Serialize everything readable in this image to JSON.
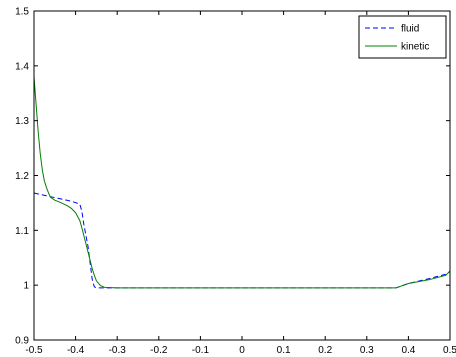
{
  "chart_data": {
    "type": "line",
    "xlim": [
      -0.5,
      0.5
    ],
    "ylim": [
      0.9,
      1.5
    ],
    "xticks": [
      "-0.5",
      "-0.4",
      "-0.3",
      "-0.2",
      "-0.1",
      "0",
      "0.1",
      "0.2",
      "0.3",
      "0.4",
      "0.5"
    ],
    "yticks": [
      "0.9",
      "1",
      "1.1",
      "1.2",
      "1.3",
      "1.4",
      "1.5"
    ],
    "grid": false,
    "legend_position": "top-right",
    "series": [
      {
        "name": "fluid",
        "color": "#0000ff",
        "style": "dashed",
        "x": [
          -0.5,
          -0.47,
          -0.44,
          -0.41,
          -0.39,
          -0.385,
          -0.38,
          -0.37,
          -0.365,
          -0.36,
          -0.355,
          -0.35,
          -0.34,
          -0.3,
          -0.2,
          -0.1,
          0.0,
          0.1,
          0.2,
          0.3,
          0.37,
          0.4,
          0.45,
          0.49,
          0.5
        ],
        "y": [
          1.168,
          1.163,
          1.158,
          1.153,
          1.148,
          1.135,
          1.11,
          1.07,
          1.04,
          1.01,
          0.997,
          0.995,
          0.995,
          0.995,
          0.995,
          0.995,
          0.995,
          0.995,
          0.995,
          0.995,
          0.995,
          1.003,
          1.012,
          1.02,
          1.025
        ]
      },
      {
        "name": "kinetic",
        "color": "#008000",
        "style": "solid",
        "x": [
          -0.5,
          -0.495,
          -0.49,
          -0.485,
          -0.48,
          -0.475,
          -0.47,
          -0.465,
          -0.46,
          -0.45,
          -0.44,
          -0.42,
          -0.41,
          -0.4,
          -0.39,
          -0.385,
          -0.38,
          -0.375,
          -0.37,
          -0.365,
          -0.36,
          -0.355,
          -0.35,
          -0.34,
          -0.33,
          -0.3,
          -0.2,
          -0.1,
          0.0,
          0.1,
          0.2,
          0.3,
          0.37,
          0.4,
          0.45,
          0.49,
          0.5
        ],
        "y": [
          1.38,
          1.33,
          1.28,
          1.24,
          1.21,
          1.19,
          1.178,
          1.168,
          1.16,
          1.155,
          1.152,
          1.145,
          1.14,
          1.132,
          1.118,
          1.105,
          1.09,
          1.075,
          1.06,
          1.045,
          1.03,
          1.018,
          1.008,
          0.999,
          0.996,
          0.995,
          0.995,
          0.995,
          0.995,
          0.995,
          0.995,
          0.995,
          0.995,
          1.003,
          1.01,
          1.018,
          1.026
        ]
      }
    ]
  }
}
